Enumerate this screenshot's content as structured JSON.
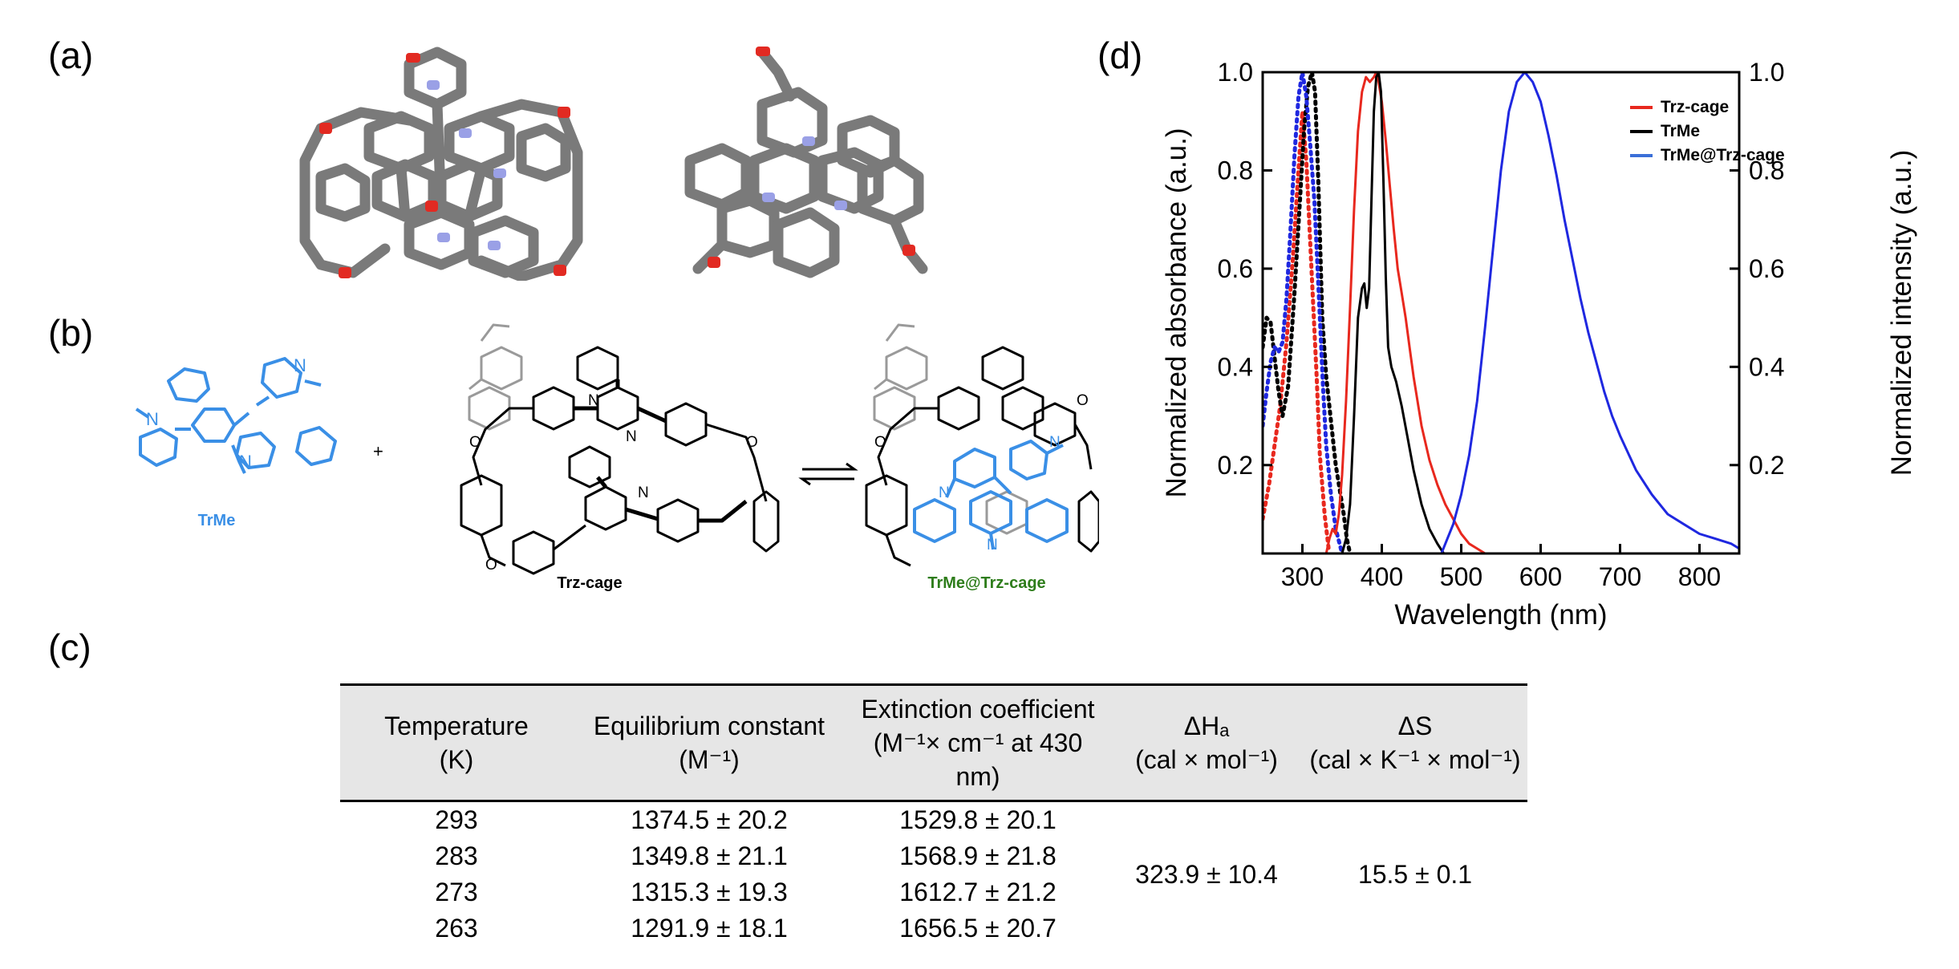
{
  "panel_labels": {
    "a": "(a)",
    "b": "(b)",
    "c": "(c)",
    "d": "(d)"
  },
  "scheme": {
    "guest_label": "TrMe",
    "host_label": "Trz-cage",
    "complex_label": "TrMe@Trz-cage",
    "plus": "+",
    "atom_N": "N",
    "atom_O": "O",
    "colors": {
      "guest": "#3a8fe6",
      "complex_label": "#2e7d1b",
      "host": "#000000",
      "ghost": "#9a9a9a"
    }
  },
  "table": {
    "headers": [
      {
        "main": "Temperature",
        "unit": "(K)"
      },
      {
        "main": "Equilibrium constant",
        "unit": "(M⁻¹)"
      },
      {
        "main": "Extinction coefficient",
        "unit": "(M⁻¹× cm⁻¹ at 430 nm)"
      },
      {
        "main": "ΔHₐ",
        "unit": "(cal × mol⁻¹)"
      },
      {
        "main": "ΔS",
        "unit": "(cal × K⁻¹ × mol⁻¹)"
      }
    ],
    "rows": [
      {
        "temperature": "293",
        "K": "1374.5 ± 20.2",
        "eps": "1529.8 ± 20.1"
      },
      {
        "temperature": "283",
        "K": "1349.8 ± 21.1",
        "eps": "1568.9 ± 21.8"
      },
      {
        "temperature": "273",
        "K": "1315.3 ± 19.3",
        "eps": "1612.7 ± 21.2"
      },
      {
        "temperature": "263",
        "K": "1291.9 ± 18.1",
        "eps": "1656.5 ± 20.7"
      }
    ],
    "dH": "323.9 ± 10.4",
    "dS": "15.5 ± 0.1"
  },
  "chart_data": {
    "type": "line",
    "xlabel": "Wavelength (nm)",
    "ylabel_left": "Normalized absorbance (a.u.)",
    "ylabel_right": "Normalized intensity (a.u.)",
    "xlim": [
      250,
      850
    ],
    "ylim": [
      0.02,
      1.0
    ],
    "xticks": [
      300,
      400,
      500,
      600,
      700,
      800
    ],
    "yticks": [
      0.2,
      0.4,
      0.6,
      0.8,
      1.0
    ],
    "ytick_labels": [
      "0.2",
      "0.4",
      "0.6",
      "0.8",
      "1.0"
    ],
    "legend_position": "top-right",
    "series": [
      {
        "name": "Trz-cage",
        "color": "#e8281e",
        "style": "dotted",
        "kind": "absorbance",
        "x": [
          250,
          258,
          265,
          272,
          280,
          288,
          295,
          300,
          305,
          312,
          318,
          322,
          328,
          333
        ],
        "y": [
          0.09,
          0.16,
          0.24,
          0.32,
          0.45,
          0.62,
          0.8,
          0.92,
          0.82,
          0.58,
          0.38,
          0.22,
          0.1,
          0.03
        ]
      },
      {
        "name": "TrMe",
        "color": "#000000",
        "style": "dotted",
        "kind": "absorbance",
        "x": [
          250,
          255,
          260,
          265,
          270,
          275,
          282,
          290,
          297,
          302,
          307,
          312,
          316,
          320,
          325,
          330,
          336,
          342,
          348,
          352,
          356,
          360
        ],
        "y": [
          0.44,
          0.5,
          0.49,
          0.42,
          0.35,
          0.3,
          0.36,
          0.55,
          0.74,
          0.88,
          0.97,
          1.0,
          0.96,
          0.78,
          0.5,
          0.38,
          0.29,
          0.2,
          0.14,
          0.1,
          0.05,
          0.02
        ]
      },
      {
        "name": "TrMe@Trz-cage",
        "color": "#1f28e0",
        "style": "dotted",
        "kind": "absorbance",
        "x": [
          250,
          255,
          260,
          265,
          270,
          275,
          280,
          285,
          290,
          295,
          300,
          305,
          310,
          315,
          318,
          322,
          326,
          330,
          336,
          342,
          350
        ],
        "y": [
          0.28,
          0.35,
          0.41,
          0.44,
          0.43,
          0.45,
          0.54,
          0.68,
          0.83,
          0.95,
          1.0,
          0.95,
          0.85,
          0.74,
          0.64,
          0.5,
          0.36,
          0.24,
          0.14,
          0.07,
          0.02
        ]
      },
      {
        "name": "Trz-cage",
        "color": "#e8281e",
        "style": "solid",
        "kind": "emission",
        "x": [
          330,
          334,
          338,
          342,
          346,
          350,
          355,
          360,
          365,
          370,
          375,
          380,
          385,
          390,
          393,
          396,
          400,
          405,
          410,
          415,
          420,
          425,
          430,
          435,
          440,
          450,
          460,
          470,
          480,
          490,
          500,
          510,
          520,
          530
        ],
        "y": [
          0.02,
          0.05,
          0.07,
          0.06,
          0.1,
          0.18,
          0.33,
          0.52,
          0.72,
          0.88,
          0.96,
          0.99,
          0.98,
          0.99,
          1.0,
          0.98,
          0.94,
          0.86,
          0.77,
          0.68,
          0.6,
          0.55,
          0.5,
          0.44,
          0.38,
          0.28,
          0.21,
          0.16,
          0.12,
          0.09,
          0.06,
          0.04,
          0.03,
          0.02
        ]
      },
      {
        "name": "TrMe",
        "color": "#000000",
        "style": "solid",
        "kind": "emission",
        "x": [
          350,
          355,
          360,
          365,
          370,
          375,
          378,
          381,
          384,
          387,
          390,
          393,
          396,
          399,
          402,
          405,
          408,
          412,
          418,
          425,
          432,
          440,
          450,
          460,
          470,
          478,
          485
        ],
        "y": [
          0.02,
          0.05,
          0.12,
          0.3,
          0.5,
          0.56,
          0.57,
          0.52,
          0.56,
          0.74,
          0.92,
          0.99,
          1.0,
          0.96,
          0.78,
          0.58,
          0.44,
          0.4,
          0.37,
          0.32,
          0.26,
          0.19,
          0.12,
          0.07,
          0.04,
          0.02,
          0.01
        ]
      },
      {
        "name": "TrMe@Trz-cage",
        "color": "#1f28e0",
        "style": "solid",
        "kind": "emission",
        "x": [
          475,
          480,
          490,
          500,
          510,
          520,
          530,
          540,
          550,
          560,
          570,
          580,
          590,
          600,
          610,
          620,
          630,
          640,
          650,
          660,
          670,
          680,
          690,
          700,
          720,
          740,
          760,
          780,
          800,
          820,
          840,
          850
        ],
        "y": [
          0.02,
          0.04,
          0.08,
          0.14,
          0.22,
          0.33,
          0.48,
          0.64,
          0.8,
          0.92,
          0.98,
          1.0,
          0.98,
          0.94,
          0.87,
          0.79,
          0.7,
          0.62,
          0.54,
          0.47,
          0.41,
          0.35,
          0.3,
          0.26,
          0.19,
          0.14,
          0.1,
          0.08,
          0.06,
          0.05,
          0.04,
          0.03
        ]
      }
    ],
    "legend": [
      {
        "label": "Trz-cage",
        "color": "#e8281e"
      },
      {
        "label": "TrMe",
        "color": "#000000"
      },
      {
        "label": "TrMe@Trz-cage",
        "color": "#3a6fd8"
      }
    ]
  }
}
